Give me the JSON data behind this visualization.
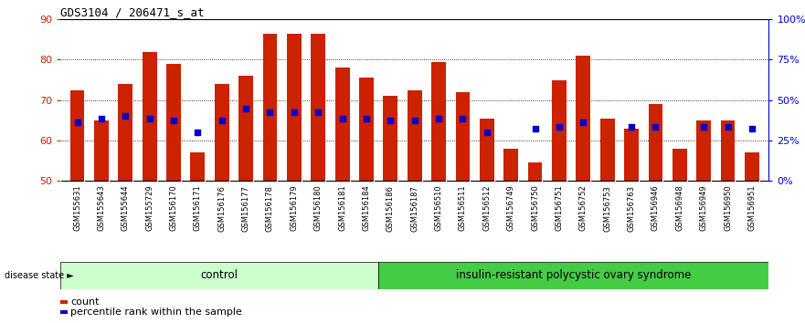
{
  "title": "GDS3104 / 206471_s_at",
  "samples": [
    "GSM155631",
    "GSM155643",
    "GSM155644",
    "GSM155729",
    "GSM156170",
    "GSM156171",
    "GSM156176",
    "GSM156177",
    "GSM156178",
    "GSM156179",
    "GSM156180",
    "GSM156181",
    "GSM156184",
    "GSM156186",
    "GSM156187",
    "GSM156510",
    "GSM156511",
    "GSM156512",
    "GSM156749",
    "GSM156750",
    "GSM156751",
    "GSM156752",
    "GSM156753",
    "GSM156763",
    "GSM156946",
    "GSM156948",
    "GSM156949",
    "GSM156950",
    "GSM156951"
  ],
  "bar_values": [
    72.5,
    65.0,
    74.0,
    82.0,
    79.0,
    57.0,
    74.0,
    76.0,
    86.5,
    86.5,
    86.5,
    78.0,
    75.5,
    71.0,
    72.5,
    79.5,
    72.0,
    65.5,
    58.0,
    54.5,
    75.0,
    81.0,
    65.5,
    63.0,
    69.0,
    58.0,
    65.0,
    65.0,
    57.0
  ],
  "dot_values": [
    64.5,
    65.5,
    66.0,
    65.5,
    65.0,
    62.0,
    65.0,
    68.0,
    67.0,
    67.0,
    67.0,
    65.5,
    65.5,
    65.0,
    65.0,
    65.5,
    65.5,
    62.0,
    null,
    63.0,
    63.5,
    64.5,
    null,
    63.5,
    63.5,
    null,
    63.5,
    63.5,
    63.0
  ],
  "n_control": 13,
  "control_label": "control",
  "disease_label": "insulin-resistant polycystic ovary syndrome",
  "bar_color": "#cc2200",
  "dot_color": "#0000cc",
  "ymin": 50,
  "ymax": 90,
  "yticks": [
    50,
    60,
    70,
    80,
    90
  ],
  "right_yticks": [
    0,
    25,
    50,
    75,
    100
  ],
  "right_yticklabels": [
    "0%",
    "25%",
    "50%",
    "75%",
    "100%"
  ],
  "background_color": "#ffffff",
  "plot_bg_color": "#ffffff",
  "xtick_bg_color": "#d8d8d8",
  "control_bg": "#ccffcc",
  "disease_bg": "#44cc44",
  "xlabel_color": "#cc2200",
  "right_axis_color": "#0000cc",
  "legend_items": [
    "count",
    "percentile rank within the sample"
  ]
}
